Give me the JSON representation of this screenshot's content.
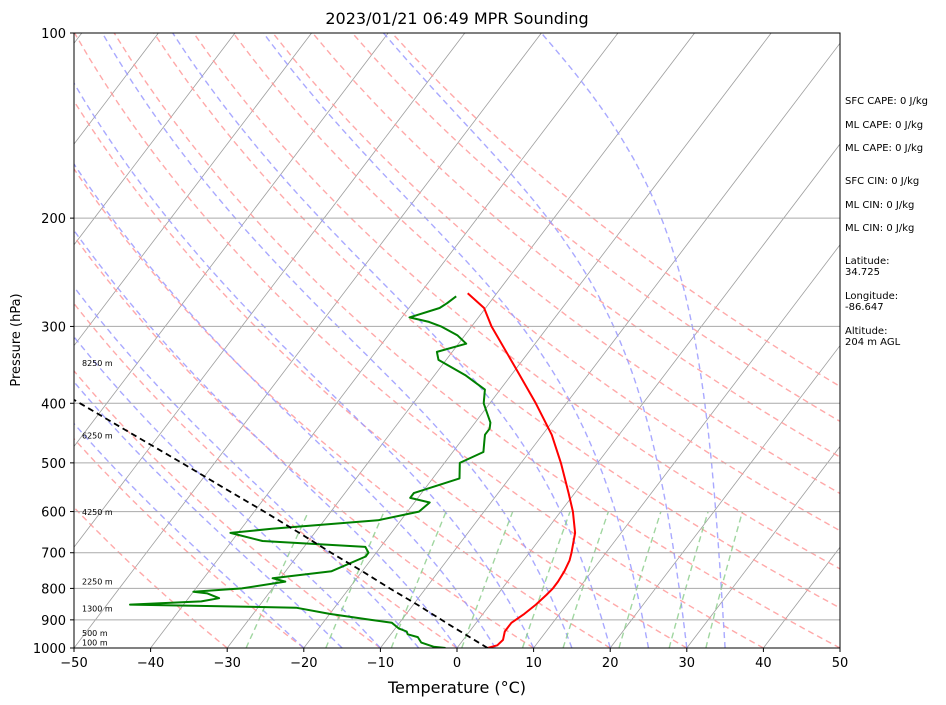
{
  "chart_data": {
    "type": "line",
    "title": "2023/01/21 06:49 MPR Sounding",
    "xlabel": "Temperature (°C)",
    "ylabel": "Pressure (hPa)",
    "xlim": [
      -50,
      50
    ],
    "ylim": [
      1000,
      100
    ],
    "y_scale": "log",
    "x_ticks": [
      -50,
      -40,
      -30,
      -20,
      -10,
      0,
      10,
      20,
      30,
      40,
      50
    ],
    "x_tick_labels": [
      "−50",
      "−40",
      "−30",
      "−20",
      "−10",
      "0",
      "10",
      "20",
      "30",
      "40",
      "50"
    ],
    "y_ticks": [
      1000,
      900,
      800,
      700,
      600,
      500,
      400,
      300,
      200,
      100
    ],
    "y_tick_labels": [
      "1000",
      "900",
      "800",
      "700",
      "600",
      "500",
      "400",
      "300",
      "200",
      "100"
    ],
    "grid": true,
    "background_lines": {
      "isotherms_color": "#9e9e9e",
      "dry_adiabats_color": "#ff9a9a",
      "moist_adiabats_color": "#9a9aff",
      "mixing_ratio_color": "#88cc88",
      "isotherms": [
        -130,
        -120,
        -110,
        -100,
        -90,
        -80,
        -70,
        -60,
        -50,
        -40,
        -30,
        -20,
        -10,
        0,
        10,
        20,
        30,
        40,
        50
      ],
      "dry_adiabat_theta_c": [
        -30,
        -20,
        -10,
        0,
        10,
        20,
        30,
        40,
        50,
        60,
        70,
        80,
        90,
        100,
        110,
        120
      ],
      "moist_adiabat_start_c": [
        -20,
        -15,
        -10,
        -5,
        0,
        5,
        10,
        15,
        20,
        25,
        30,
        35
      ],
      "mixing_ratios_gkg": [
        0.4,
        1,
        2,
        4,
        7,
        10,
        16,
        24,
        32
      ]
    },
    "series": [
      {
        "name": "",
        "color": "#ff0000",
        "points": [
          [
            1000,
            4
          ],
          [
            990,
            5
          ],
          [
            970,
            5.2
          ],
          [
            940,
            4.6
          ],
          [
            910,
            4.6
          ],
          [
            880,
            5.4
          ],
          [
            850,
            6.0
          ],
          [
            820,
            6.4
          ],
          [
            800,
            6.6
          ],
          [
            780,
            6.6
          ],
          [
            750,
            6.4
          ],
          [
            720,
            6.0
          ],
          [
            700,
            5.5
          ],
          [
            650,
            4.0
          ],
          [
            600,
            1.6
          ],
          [
            560,
            -0.8
          ],
          [
            500,
            -4.8
          ],
          [
            450,
            -8.8
          ],
          [
            400,
            -14.0
          ],
          [
            350,
            -20.2
          ],
          [
            300,
            -27.4
          ],
          [
            280,
            -30.2
          ],
          [
            265,
            -33.8
          ]
        ]
      },
      {
        "name": "",
        "color": "#008000",
        "points": [
          [
            1000,
            -1.5
          ],
          [
            995,
            -3.2
          ],
          [
            980,
            -5.2
          ],
          [
            960,
            -6.2
          ],
          [
            950,
            -7.8
          ],
          [
            940,
            -8.2
          ],
          [
            930,
            -9.5
          ],
          [
            910,
            -11
          ],
          [
            900,
            -14
          ],
          [
            880,
            -20
          ],
          [
            860,
            -25
          ],
          [
            850,
            -47
          ],
          [
            840,
            -38
          ],
          [
            830,
            -36
          ],
          [
            815,
            -38
          ],
          [
            810,
            -40
          ],
          [
            800,
            -34
          ],
          [
            780,
            -29
          ],
          [
            770,
            -31
          ],
          [
            750,
            -24
          ],
          [
            710,
            -21
          ],
          [
            700,
            -21
          ],
          [
            685,
            -22
          ],
          [
            670,
            -36
          ],
          [
            650,
            -41
          ],
          [
            640,
            -36
          ],
          [
            620,
            -23
          ],
          [
            600,
            -18.5
          ],
          [
            580,
            -18
          ],
          [
            570,
            -21
          ],
          [
            560,
            -21
          ],
          [
            530,
            -16.5
          ],
          [
            500,
            -18
          ],
          [
            480,
            -16
          ],
          [
            460,
            -17
          ],
          [
            450,
            -17.5
          ],
          [
            440,
            -17.5
          ],
          [
            430,
            -18
          ],
          [
            400,
            -20.8
          ],
          [
            380,
            -22
          ],
          [
            360,
            -26
          ],
          [
            340,
            -31
          ],
          [
            330,
            -32
          ],
          [
            320,
            -29
          ],
          [
            310,
            -31
          ],
          [
            300,
            -34
          ],
          [
            295,
            -36
          ],
          [
            290,
            -39
          ],
          [
            280,
            -36
          ],
          [
            275,
            -35.5
          ],
          [
            268,
            -35
          ]
        ]
      },
      {
        "name": "",
        "color": "#000000",
        "dashed": true,
        "points": [
          [
            1000,
            4
          ],
          [
            950,
            -0.3
          ],
          [
            920,
            -3.0
          ],
          [
            900,
            -4.8
          ],
          [
            850,
            -9.5
          ],
          [
            800,
            -14.7
          ],
          [
            750,
            -20.0
          ],
          [
            700,
            -25.9
          ],
          [
            650,
            -32.0
          ],
          [
            600,
            -38.7
          ],
          [
            550,
            -46.2
          ],
          [
            500,
            -54.3
          ],
          [
            450,
            -63.4
          ],
          [
            400,
            -73.5
          ],
          [
            350,
            -85.0
          ],
          [
            300,
            -98.0
          ],
          [
            268,
            -107.5
          ]
        ]
      }
    ],
    "height_labels": [
      {
        "p": 980,
        "text": "100 m"
      },
      {
        "p": 945,
        "text": "500 m"
      },
      {
        "p": 862,
        "text": "1300 m"
      },
      {
        "p": 780,
        "text": "2250 m"
      },
      {
        "p": 601,
        "text": "4250 m"
      },
      {
        "p": 451,
        "text": "6250 m"
      },
      {
        "p": 344,
        "text": "8250 m"
      }
    ]
  },
  "annotations": [
    "SFC CAPE: 0 J/kg",
    "ML CAPE: 0 J/kg",
    "ML CAPE: 0 J/kg",
    "SFC CIN: 0 J/kg",
    "ML CIN: 0 J/kg",
    "ML CIN: 0 J/kg",
    "Latitude:",
    "34.725",
    "Longitude:",
    "-86.647",
    "Altitude:",
    "204 m AGL"
  ]
}
